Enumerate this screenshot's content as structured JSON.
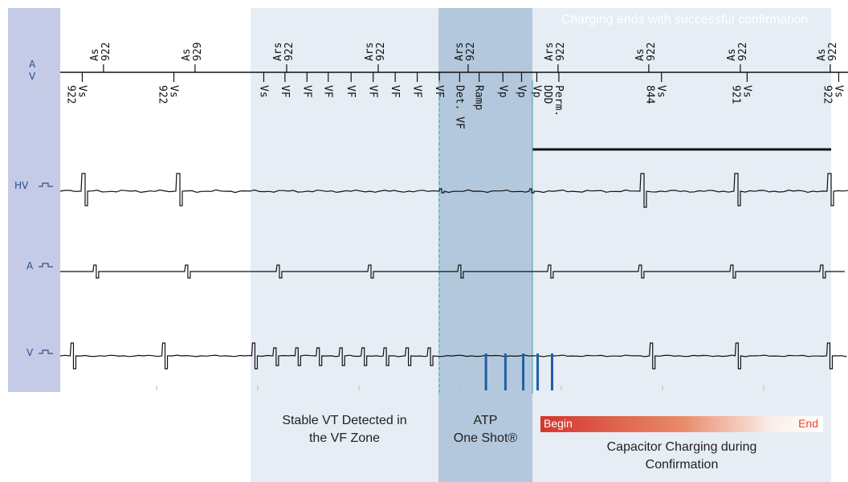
{
  "channels": {
    "marker_a": "A",
    "marker_v": "V",
    "hv": "HV",
    "atrial": "A",
    "ventricular": "V"
  },
  "atrial_markers": [
    {
      "label": "As",
      "value": "922",
      "time": 0.255
    },
    {
      "label": "As",
      "value": "929",
      "time": 0.795
    },
    {
      "label": "Ars",
      "value": "922",
      "time": 1.335
    },
    {
      "label": "Ars",
      "value": "922",
      "time": 1.875
    },
    {
      "label": "Ars",
      "value": "922",
      "time": 2.405
    },
    {
      "label": "Ars",
      "value": "922",
      "time": 2.935
    },
    {
      "label": "As",
      "value": "922",
      "time": 3.47
    },
    {
      "label": "As",
      "value": "922",
      "time": 4.01
    },
    {
      "label": "As",
      "value": "922",
      "time": 4.54
    }
  ],
  "ventricular_markers": [
    {
      "label": "Vs",
      "value": "922",
      "color": "#111111",
      "time": 0.13
    },
    {
      "label": "Vs",
      "value": "922",
      "color": "#111111",
      "time": 0.67
    },
    {
      "label": "Vs",
      "value": "",
      "color": "#111111",
      "time": 1.2
    },
    {
      "label": "VF",
      "value": "",
      "color": "#e2472f",
      "time": 1.325
    },
    {
      "label": "VF",
      "value": "",
      "color": "#e2472f",
      "time": 1.455
    },
    {
      "label": "VF",
      "value": "",
      "color": "#e2472f",
      "time": 1.58
    },
    {
      "label": "VF",
      "value": "",
      "color": "#e2472f",
      "time": 1.715
    },
    {
      "label": "VF",
      "value": "",
      "color": "#e2472f",
      "time": 1.845
    },
    {
      "label": "VF",
      "value": "",
      "color": "#e2472f",
      "time": 1.975
    },
    {
      "label": "VF",
      "value": "",
      "color": "#e2472f",
      "time": 2.105
    },
    {
      "label": "VF",
      "value": "",
      "color": "#e2472f",
      "time": 2.235
    },
    {
      "label": "Det. VF",
      "value": "",
      "color": "#111111",
      "time": 2.355
    },
    {
      "label": "Ramp",
      "value": "",
      "color": "#111111",
      "time": 2.47
    },
    {
      "label": "Vp",
      "value": "",
      "color": "#111111",
      "time": 2.61
    },
    {
      "label": "Vp",
      "value": "",
      "color": "#111111",
      "time": 2.72
    },
    {
      "label": "Vp",
      "value": "",
      "color": "#111111",
      "time": 2.81
    },
    {
      "label": "Perm.",
      "value": "DDD",
      "color": "#111111",
      "time": 2.94
    },
    {
      "label": "Vs",
      "value": "844",
      "color": "#111111",
      "time": 3.545
    },
    {
      "label": "Vs",
      "value": "921",
      "color": "#111111",
      "time": 4.05
    },
    {
      "label": "Vs",
      "value": "922",
      "color": "#111111",
      "time": 4.59
    }
  ],
  "atp_pulses": [
    2.51,
    2.625,
    2.73,
    2.815,
    2.9
  ],
  "annotations": {
    "vt_detected": [
      "Stable VT Detected in",
      "the VF Zone"
    ],
    "atp": [
      "ATP",
      "One Shot®"
    ],
    "capacitor": [
      "Capacitor Charging during",
      "Confirmation"
    ],
    "charging_note": "Charging ends with successful confirmation",
    "bar_begin": "Begin",
    "bar_end": "End"
  },
  "colors": {
    "marker_red": "#e2472f",
    "atp_pulse": "#1f5fa8",
    "band_left": "#c5cbe6",
    "band_light": "#e6edf5",
    "band_atp": "#b3c8dc"
  }
}
